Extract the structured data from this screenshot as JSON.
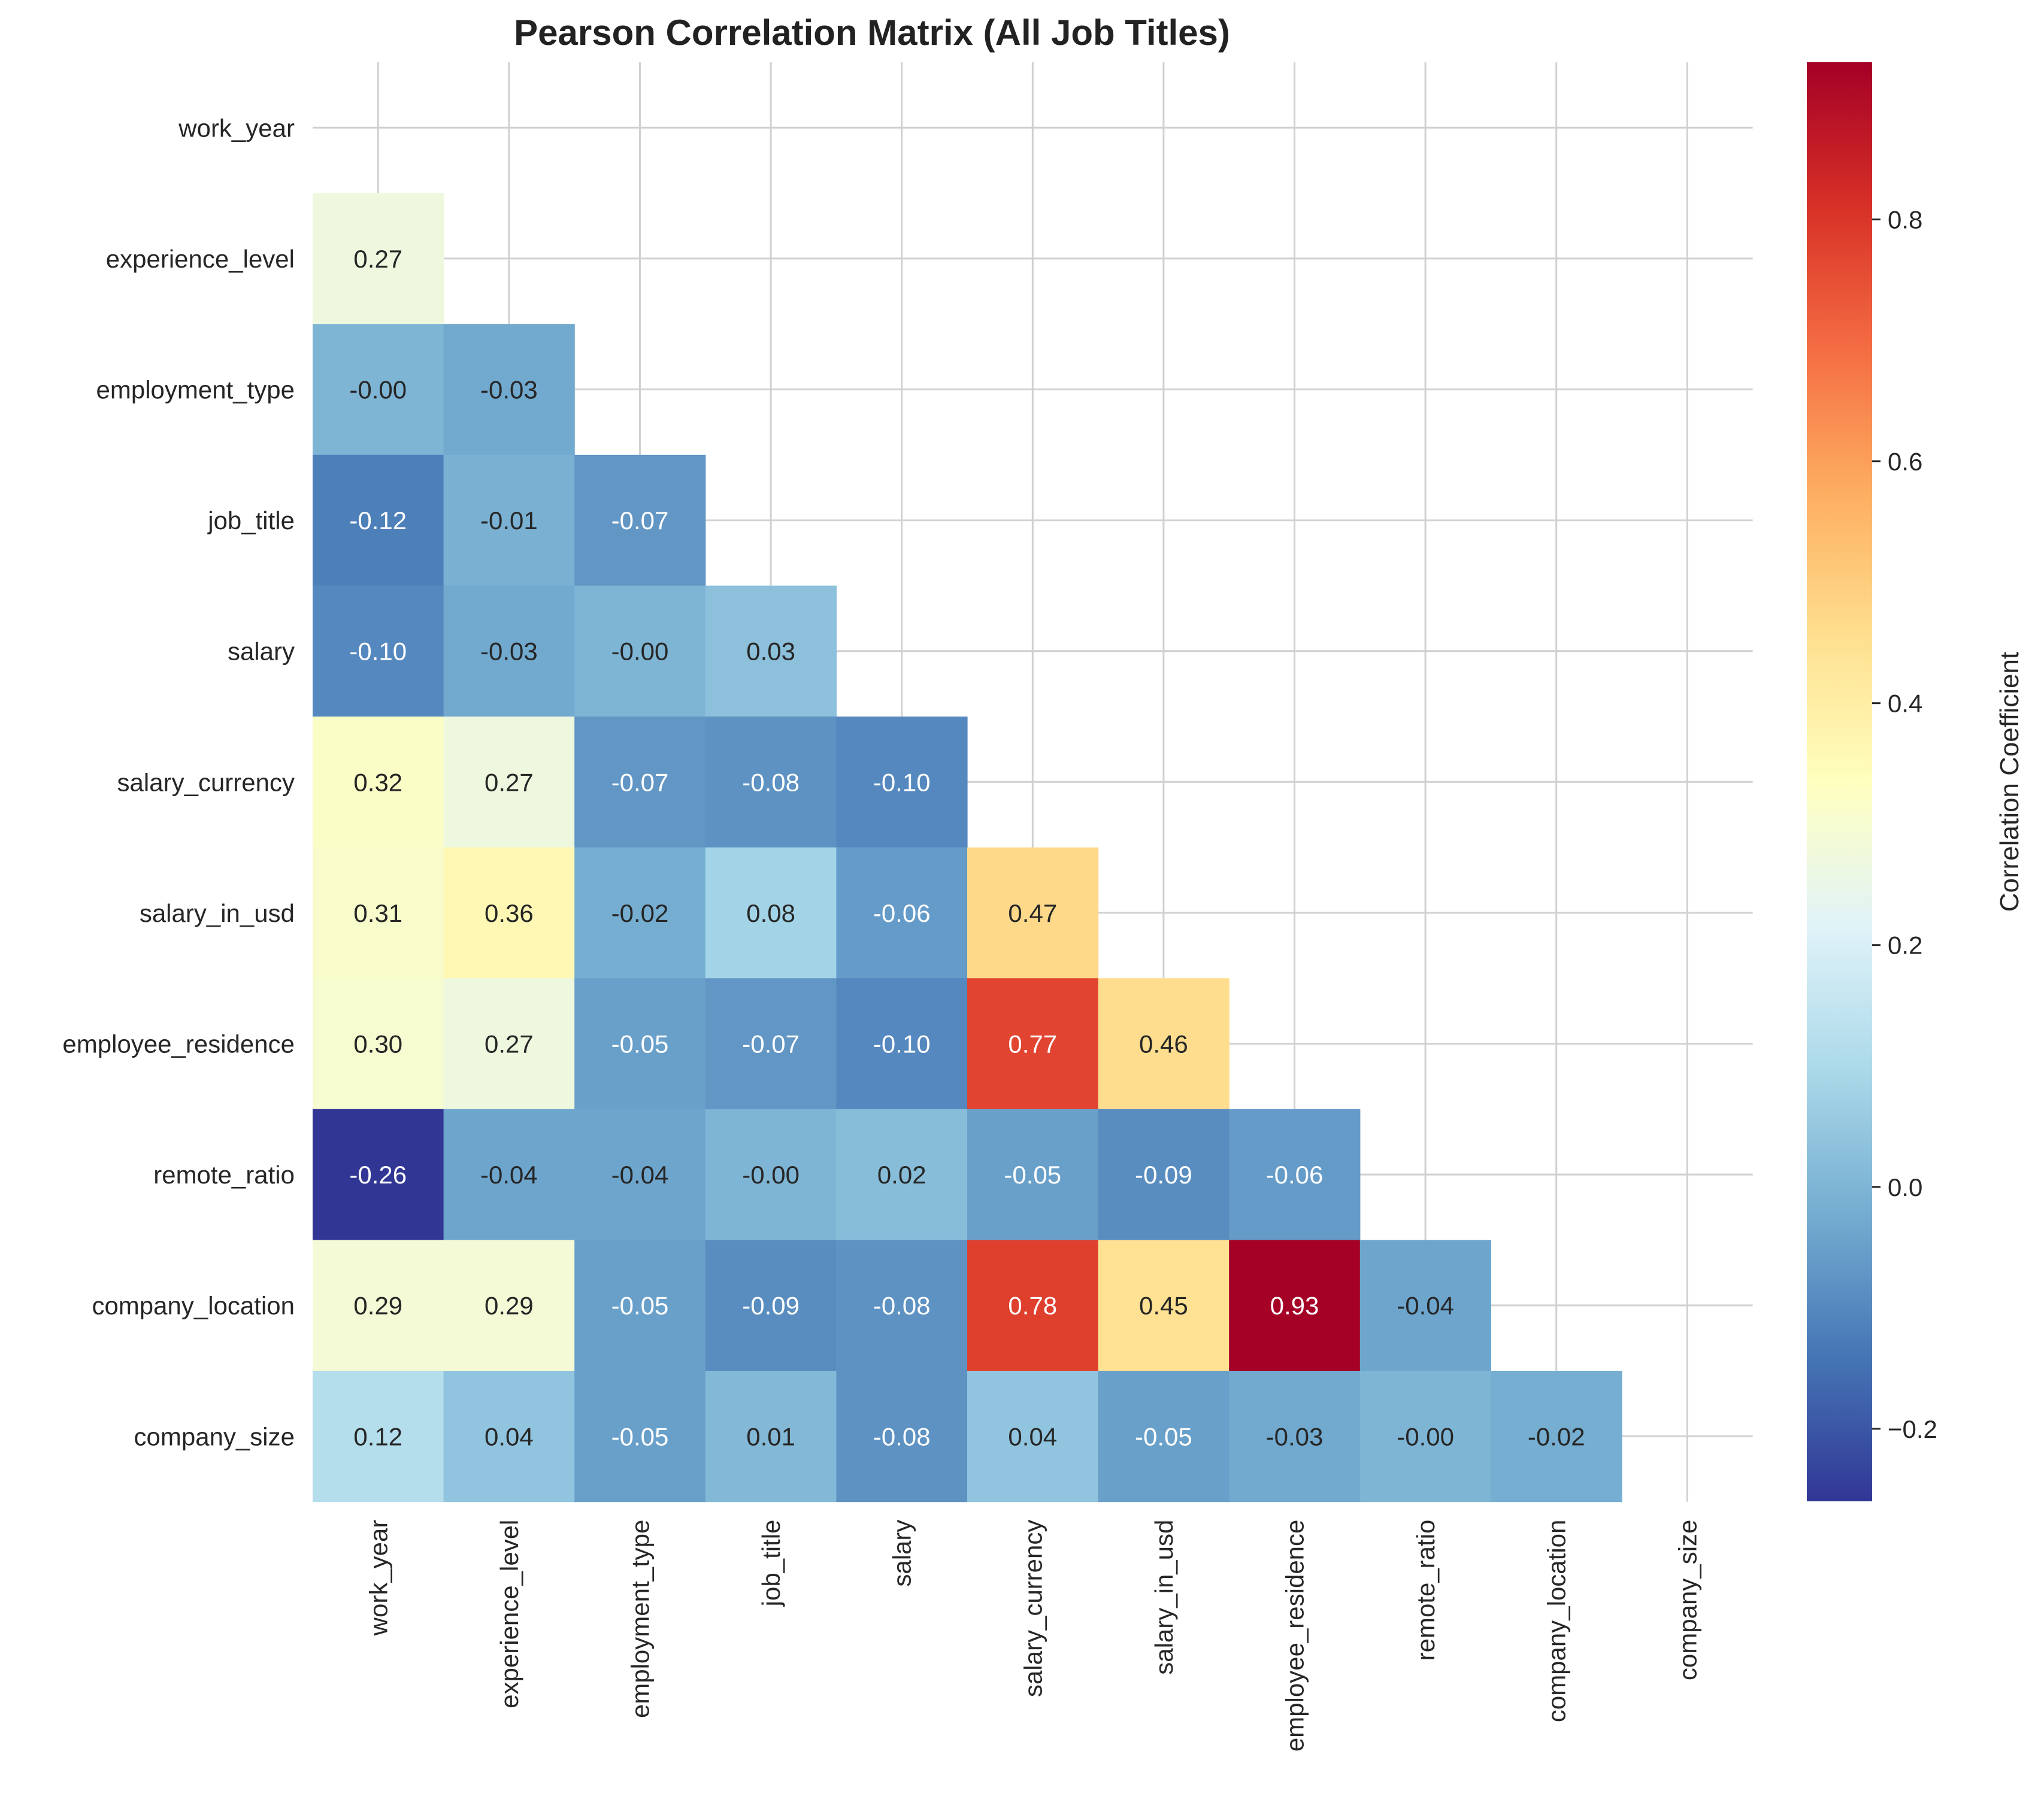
{
  "chart_data": {
    "type": "heatmap",
    "title": "Pearson Correlation Matrix (All Job Titles)",
    "variables": [
      "work_year",
      "experience_level",
      "employment_type",
      "job_title",
      "salary",
      "salary_currency",
      "salary_in_usd",
      "employee_residence",
      "remote_ratio",
      "company_location",
      "company_size"
    ],
    "mask": "upper triangle including diagonal (lower triangle shown)",
    "rows": [
      [],
      [
        "0.27"
      ],
      [
        "-0.00",
        "-0.03"
      ],
      [
        "-0.12",
        "-0.01",
        "-0.07"
      ],
      [
        "-0.10",
        "-0.03",
        "-0.00",
        "0.03"
      ],
      [
        "0.32",
        "0.27",
        "-0.07",
        "-0.08",
        "-0.10"
      ],
      [
        "0.31",
        "0.36",
        "-0.02",
        "0.08",
        "-0.06",
        "0.47"
      ],
      [
        "0.30",
        "0.27",
        "-0.05",
        "-0.07",
        "-0.10",
        "0.77",
        "0.46"
      ],
      [
        "-0.26",
        "-0.04",
        "-0.04",
        "-0.00",
        "0.02",
        "-0.05",
        "-0.09",
        "-0.06"
      ],
      [
        "0.29",
        "0.29",
        "-0.05",
        "-0.09",
        "-0.08",
        "0.78",
        "0.45",
        "0.93",
        "-0.04"
      ],
      [
        "0.12",
        "0.04",
        "-0.05",
        "0.01",
        "-0.08",
        "0.04",
        "-0.05",
        "-0.03",
        "-0.00",
        "-0.02"
      ]
    ],
    "colorbar": {
      "label": "Correlation Coefficient",
      "colormap": "RdYlBu_r",
      "range": [
        -0.26,
        0.93
      ],
      "ticks": [
        "−0.2",
        "0.0",
        "0.2",
        "0.4",
        "0.6",
        "0.8"
      ],
      "tick_values": [
        -0.2,
        0.0,
        0.2,
        0.4,
        0.6,
        0.8
      ]
    },
    "grid": true
  }
}
